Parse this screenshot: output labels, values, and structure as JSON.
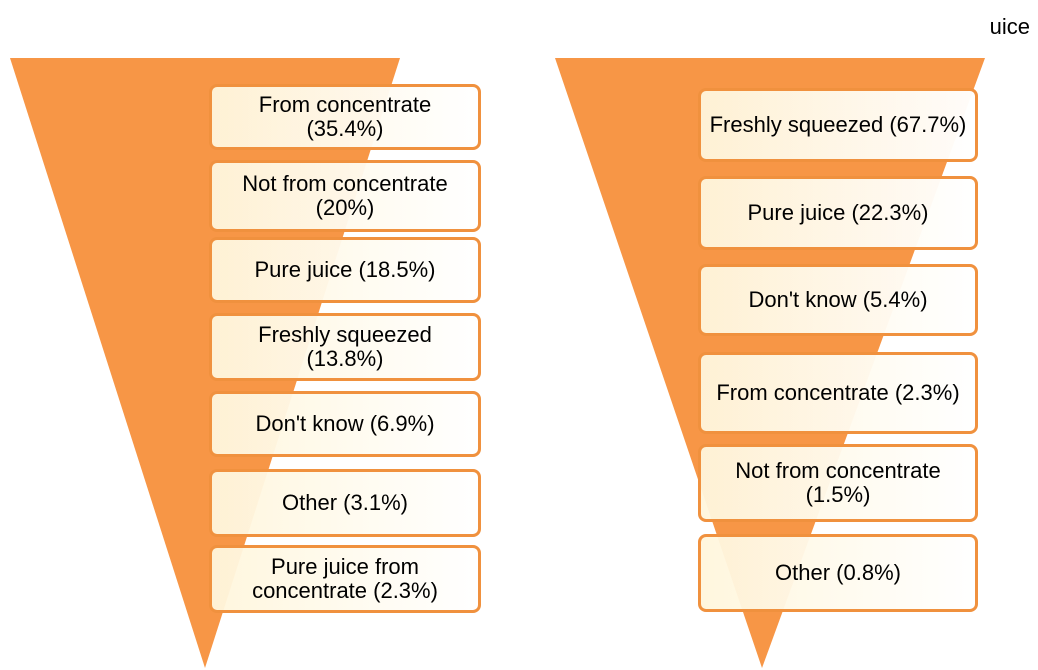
{
  "corner_text": "uice",
  "funnels": [
    {
      "items": [
        "From concentrate (35.4%)",
        "Not from concentrate (20%)",
        "Pure juice (18.5%)",
        "Freshly squeezed (13.8%)",
        "Don't know (6.9%)",
        "Other (3.1%)",
        "Pure juice from concentrate (2.3%)"
      ]
    },
    {
      "items": [
        "Freshly squeezed (67.7%)",
        "Pure juice (22.3%)",
        "Don't know (5.4%)",
        "From concentrate (2.3%)",
        "Not from concentrate (1.5%)",
        "Other (0.8%)"
      ]
    }
  ]
}
